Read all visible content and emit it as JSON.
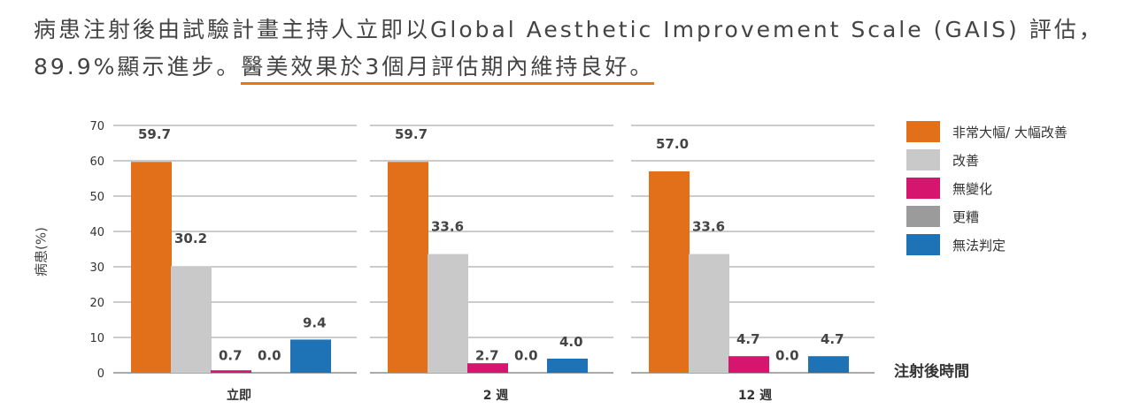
{
  "heading": {
    "line1": "病患注射後由試驗計畫主持人立即以Global Aesthetic Improvement Scale (GAIS) 評估，",
    "line2_prefix": "89.9%顯示進步。",
    "line2_highlight": "醫美效果於3個月評估期內維持良好。"
  },
  "colors": {
    "much_improved": "#E2701A",
    "improved": "#C9C9C9",
    "no_change": "#D6156F",
    "worse": "#9B9B9B",
    "undetermined": "#1E73B7",
    "highlight_underline": "#E8760F"
  },
  "chart_data": {
    "type": "bar",
    "ylabel": "病患(%)",
    "xlabel": "注射後時間",
    "ylim": [
      0,
      70
    ],
    "yticks": [
      0,
      10,
      20,
      30,
      40,
      50,
      60,
      70
    ],
    "grid": true,
    "legend_position": "right",
    "categories": [
      "立即",
      "2 週",
      "12 週"
    ],
    "series": [
      {
        "name": "非常大幅/ 大幅改善",
        "color_key": "much_improved",
        "values": [
          59.7,
          59.7,
          57.0
        ]
      },
      {
        "name": "改善",
        "color_key": "improved",
        "values": [
          30.2,
          33.6,
          33.6
        ]
      },
      {
        "name": "無變化",
        "color_key": "no_change",
        "values": [
          0.7,
          2.7,
          4.7
        ]
      },
      {
        "name": "更糟",
        "color_key": "worse",
        "values": [
          0.0,
          0.0,
          0.0
        ]
      },
      {
        "name": "無法判定",
        "color_key": "undetermined",
        "values": [
          9.4,
          4.0,
          4.7
        ]
      }
    ]
  }
}
